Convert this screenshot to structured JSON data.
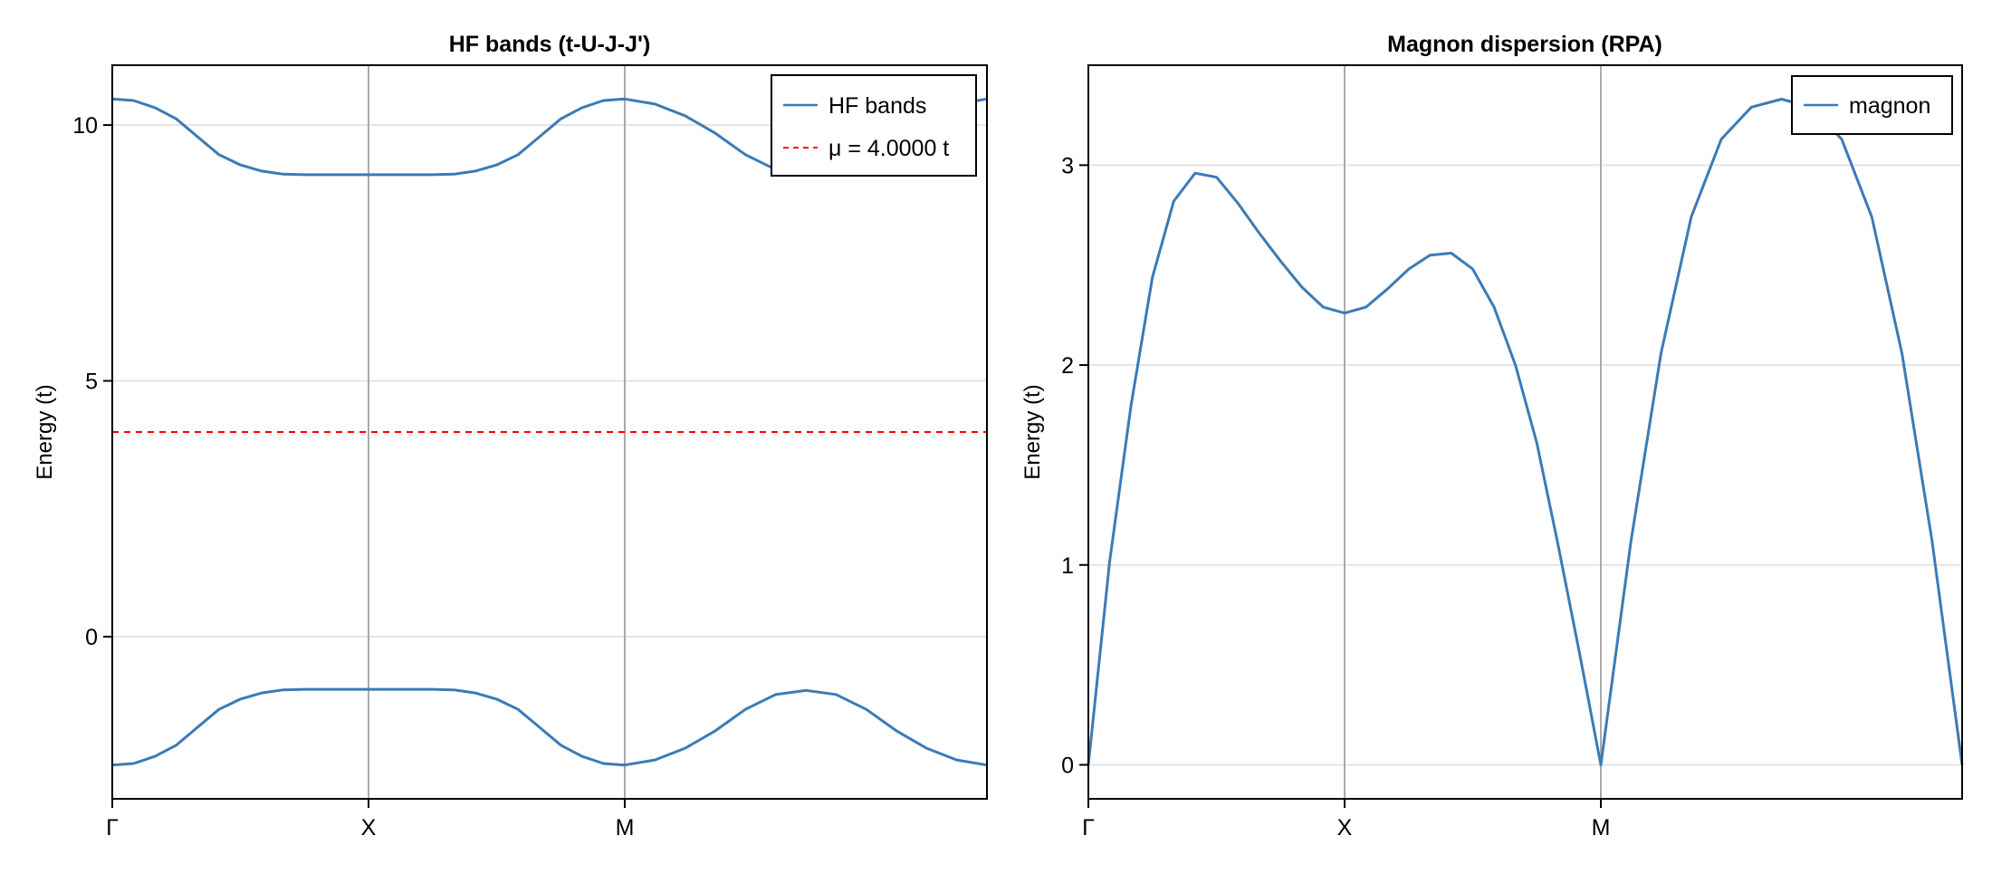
{
  "chart_data": [
    {
      "type": "line",
      "title": "HF bands (t-U-J-J')",
      "xlabel": "",
      "ylabel": "Energy (t)",
      "x_ticks": [
        {
          "label": "Γ",
          "pos": 0
        },
        {
          "label": "X",
          "pos": 12
        },
        {
          "label": "M",
          "pos": 24
        }
      ],
      "x_range": [
        0,
        41
      ],
      "ylim": [
        -3.17,
        11.17
      ],
      "y_ticks": [
        0,
        5,
        10
      ],
      "grid": true,
      "legend_position": "top-right",
      "series": [
        {
          "name": "HF bands",
          "style": "solid",
          "color": "#3b7bb5",
          "values_lower": [
            -2.51,
            -2.48,
            -2.34,
            -2.12,
            -1.77,
            -1.42,
            -1.22,
            -1.1,
            -1.04,
            -1.03,
            -1.03,
            -1.03,
            -1.03,
            -1.03,
            -1.03,
            -1.03,
            -1.04,
            -1.1,
            -1.22,
            -1.42,
            -1.77,
            -2.12,
            -2.34,
            -2.48,
            -2.51,
            -2.41,
            -2.18,
            -1.84,
            -1.42,
            -1.13,
            -1.05,
            -1.13,
            -1.42,
            -1.84,
            -2.18,
            -2.41,
            -2.51
          ],
          "values_upper": [
            10.51,
            10.48,
            10.34,
            10.12,
            9.77,
            9.42,
            9.22,
            9.1,
            9.04,
            9.03,
            9.03,
            9.03,
            9.03,
            9.03,
            9.03,
            9.03,
            9.04,
            9.1,
            9.22,
            9.42,
            9.77,
            10.12,
            10.34,
            10.48,
            10.51,
            10.41,
            10.18,
            9.84,
            9.42,
            9.13,
            9.05,
            9.13,
            9.42,
            9.84,
            10.18,
            10.41,
            10.51
          ]
        },
        {
          "name": "μ = 4.0000 t",
          "style": "dashed",
          "color": "#ff0000",
          "value": 4.0
        }
      ]
    },
    {
      "type": "line",
      "title": "Magnon dispersion (RPA)",
      "xlabel": "",
      "ylabel": "Energy (t)",
      "x_ticks": [
        {
          "label": "Γ",
          "pos": 0
        },
        {
          "label": "X",
          "pos": 12
        },
        {
          "label": "M",
          "pos": 24
        }
      ],
      "ylim": [
        -0.17,
        3.5
      ],
      "y_ticks": [
        0,
        1,
        2,
        3
      ],
      "grid": true,
      "legend_position": "top-right",
      "series": [
        {
          "name": "magnon",
          "style": "solid",
          "color": "#3b7bb5",
          "values": [
            0.0,
            1.02,
            1.8,
            2.44,
            2.82,
            2.96,
            2.94,
            2.81,
            2.66,
            2.52,
            2.39,
            2.29,
            2.26,
            2.29,
            2.38,
            2.48,
            2.55,
            2.56,
            2.48,
            2.29,
            2.0,
            1.61,
            1.1,
            0.56,
            0.0,
            1.12,
            2.06,
            2.74,
            3.13,
            3.29,
            3.33,
            3.29,
            3.13,
            2.74,
            2.06,
            1.12,
            0.0
          ]
        }
      ]
    }
  ],
  "left_plot": {
    "title": "HF bands (t-U-J-J')",
    "ylabel": "Energy (t)",
    "y_tick_labels": [
      "0",
      "5",
      "10"
    ],
    "x_tick_labels": [
      "Γ",
      "X",
      "M"
    ],
    "legend": [
      {
        "label": "HF bands",
        "style": "solid",
        "color": "#3b7bb5"
      },
      {
        "label": "μ = 4.0000 t",
        "style": "dashed",
        "color": "#ff0000"
      }
    ]
  },
  "right_plot": {
    "title": "Magnon dispersion (RPA)",
    "ylabel": "Energy (t)",
    "y_tick_labels": [
      "0",
      "1",
      "2",
      "3"
    ],
    "x_tick_labels": [
      "Γ",
      "X",
      "M"
    ],
    "legend": [
      {
        "label": "magnon",
        "style": "solid",
        "color": "#3b7bb5"
      }
    ]
  },
  "colors": {
    "line": "#3b7bb5",
    "mu_line": "#ff0000",
    "grid": "#e5e5e5",
    "vline": "#aaaaaa",
    "axis": "#000000"
  }
}
